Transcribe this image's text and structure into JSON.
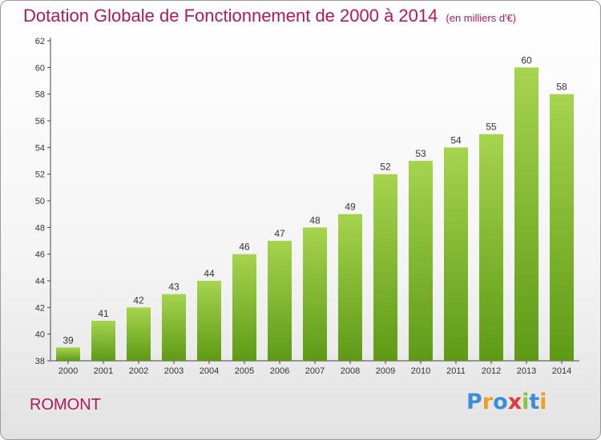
{
  "chart_data": {
    "type": "bar",
    "title": "Dotation Globale de Fonctionnement de 2000 à 2014",
    "subtitle": "(en milliers d'€)",
    "xlabel": "",
    "ylabel": "",
    "categories": [
      "2000",
      "2001",
      "2002",
      "2003",
      "2004",
      "2005",
      "2006",
      "2007",
      "2008",
      "2009",
      "2010",
      "2011",
      "2012",
      "2013",
      "2014"
    ],
    "values": [
      39,
      41,
      42,
      43,
      44,
      46,
      47,
      48,
      49,
      52,
      53,
      54,
      55,
      60,
      58
    ],
    "ylim": [
      38,
      62
    ],
    "yticks": [
      38,
      40,
      42,
      44,
      46,
      48,
      50,
      52,
      54,
      56,
      58,
      60,
      62
    ],
    "grid": false,
    "legend": "none",
    "bar_color_top": "#a6d44e",
    "bar_color_bottom": "#5e9a16"
  },
  "commune": "ROMONT",
  "logo": {
    "letters": [
      "P",
      "r",
      "o",
      "x",
      "i",
      "t",
      "i"
    ],
    "colors": [
      "#3a8fd8",
      "#f0a020",
      "#3a8fd8",
      "#e23a3a",
      "#8bc34a",
      "#3a8fd8",
      "#f0a020"
    ]
  }
}
